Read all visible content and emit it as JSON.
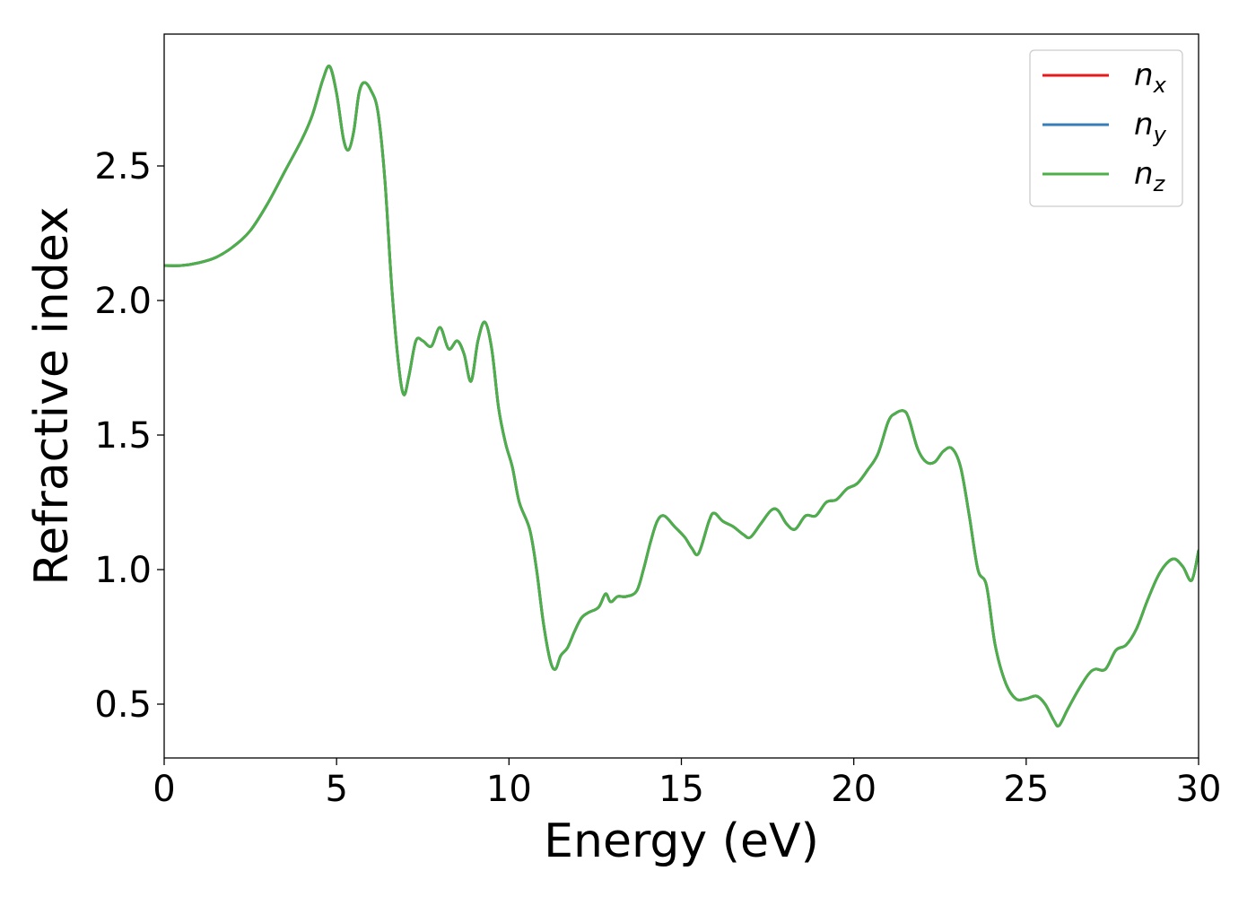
{
  "chart_data": {
    "type": "line",
    "title": "",
    "xlabel": "Energy (eV)",
    "ylabel": "Refractive index",
    "xlim": [
      0,
      30
    ],
    "ylim": [
      0.3,
      2.99
    ],
    "xticks": [
      0,
      5,
      10,
      15,
      20,
      25,
      30
    ],
    "xtick_labels": [
      "0",
      "5",
      "10",
      "15",
      "20",
      "25",
      "30"
    ],
    "yticks": [
      0.5,
      1.0,
      1.5,
      2.0,
      2.5
    ],
    "ytick_labels": [
      "0.5",
      "1.0",
      "1.5",
      "2.0",
      "2.5"
    ],
    "grid": false,
    "legend_position": "top-right",
    "series": [
      {
        "name": "n_x",
        "label_base": "n",
        "label_sub": "x",
        "color": "#e41a1c",
        "x": [
          0,
          0.5,
          1.0,
          1.5,
          2.0,
          2.5,
          3.0,
          3.5,
          4.0,
          4.3,
          4.6,
          4.8,
          5.0,
          5.2,
          5.35,
          5.5,
          5.65,
          5.8,
          6.0,
          6.2,
          6.4,
          6.6,
          6.8,
          6.95,
          7.1,
          7.3,
          7.5,
          7.75,
          8.0,
          8.25,
          8.5,
          8.7,
          8.9,
          9.1,
          9.3,
          9.5,
          9.7,
          9.9,
          10.1,
          10.3,
          10.6,
          10.8,
          11.0,
          11.2,
          11.35,
          11.5,
          11.7,
          11.9,
          12.1,
          12.3,
          12.6,
          12.8,
          12.95,
          13.15,
          13.4,
          13.7,
          13.9,
          14.1,
          14.3,
          14.5,
          14.8,
          15.1,
          15.3,
          15.5,
          15.8,
          15.95,
          16.2,
          16.5,
          16.8,
          17.0,
          17.3,
          17.6,
          17.8,
          18.05,
          18.3,
          18.6,
          18.9,
          19.2,
          19.5,
          19.8,
          20.1,
          20.4,
          20.7,
          21.0,
          21.2,
          21.45,
          21.6,
          21.85,
          22.1,
          22.35,
          22.6,
          22.85,
          23.1,
          23.35,
          23.6,
          23.85,
          24.1,
          24.4,
          24.7,
          25.0,
          25.3,
          25.55,
          25.8,
          25.95,
          26.2,
          26.5,
          26.8,
          27.0,
          27.3,
          27.6,
          27.9,
          28.2,
          28.5,
          28.8,
          29.05,
          29.3,
          29.55,
          29.8,
          30.0
        ],
        "y": [
          2.13,
          2.13,
          2.14,
          2.16,
          2.2,
          2.26,
          2.36,
          2.48,
          2.6,
          2.69,
          2.82,
          2.87,
          2.77,
          2.6,
          2.56,
          2.63,
          2.77,
          2.81,
          2.78,
          2.7,
          2.45,
          2.05,
          1.76,
          1.65,
          1.72,
          1.85,
          1.85,
          1.83,
          1.9,
          1.82,
          1.85,
          1.8,
          1.7,
          1.85,
          1.92,
          1.82,
          1.6,
          1.47,
          1.38,
          1.25,
          1.15,
          1.0,
          0.8,
          0.66,
          0.63,
          0.68,
          0.71,
          0.77,
          0.82,
          0.84,
          0.86,
          0.91,
          0.88,
          0.9,
          0.9,
          0.92,
          1.0,
          1.1,
          1.18,
          1.2,
          1.16,
          1.12,
          1.08,
          1.06,
          1.18,
          1.21,
          1.18,
          1.16,
          1.13,
          1.12,
          1.17,
          1.22,
          1.22,
          1.17,
          1.15,
          1.2,
          1.2,
          1.25,
          1.26,
          1.3,
          1.32,
          1.37,
          1.43,
          1.55,
          1.58,
          1.59,
          1.56,
          1.45,
          1.4,
          1.4,
          1.44,
          1.45,
          1.38,
          1.2,
          1.0,
          0.94,
          0.72,
          0.58,
          0.52,
          0.52,
          0.53,
          0.5,
          0.44,
          0.42,
          0.48,
          0.55,
          0.61,
          0.63,
          0.63,
          0.7,
          0.72,
          0.78,
          0.88,
          0.97,
          1.02,
          1.04,
          1.01,
          0.96,
          1.07
        ]
      },
      {
        "name": "n_y",
        "label_base": "n",
        "label_sub": "y",
        "color": "#377eb8",
        "x": [
          0,
          0.5,
          1.0,
          1.5,
          2.0,
          2.5,
          3.0,
          3.5,
          4.0,
          4.3,
          4.6,
          4.8,
          5.0,
          5.2,
          5.35,
          5.5,
          5.65,
          5.8,
          6.0,
          6.2,
          6.4,
          6.6,
          6.8,
          6.95,
          7.1,
          7.3,
          7.5,
          7.75,
          8.0,
          8.25,
          8.5,
          8.7,
          8.9,
          9.1,
          9.3,
          9.5,
          9.7,
          9.9,
          10.1,
          10.3,
          10.6,
          10.8,
          11.0,
          11.2,
          11.35,
          11.5,
          11.7,
          11.9,
          12.1,
          12.3,
          12.6,
          12.8,
          12.95,
          13.15,
          13.4,
          13.7,
          13.9,
          14.1,
          14.3,
          14.5,
          14.8,
          15.1,
          15.3,
          15.5,
          15.8,
          15.95,
          16.2,
          16.5,
          16.8,
          17.0,
          17.3,
          17.6,
          17.8,
          18.05,
          18.3,
          18.6,
          18.9,
          19.2,
          19.5,
          19.8,
          20.1,
          20.4,
          20.7,
          21.0,
          21.2,
          21.45,
          21.6,
          21.85,
          22.1,
          22.35,
          22.6,
          22.85,
          23.1,
          23.35,
          23.6,
          23.85,
          24.1,
          24.4,
          24.7,
          25.0,
          25.3,
          25.55,
          25.8,
          25.95,
          26.2,
          26.5,
          26.8,
          27.0,
          27.3,
          27.6,
          27.9,
          28.2,
          28.5,
          28.8,
          29.05,
          29.3,
          29.55,
          29.8,
          30.0
        ],
        "y": [
          2.13,
          2.13,
          2.14,
          2.16,
          2.2,
          2.26,
          2.36,
          2.48,
          2.6,
          2.69,
          2.82,
          2.87,
          2.77,
          2.6,
          2.56,
          2.63,
          2.77,
          2.81,
          2.78,
          2.7,
          2.45,
          2.05,
          1.76,
          1.65,
          1.72,
          1.85,
          1.85,
          1.83,
          1.9,
          1.82,
          1.85,
          1.8,
          1.7,
          1.85,
          1.92,
          1.82,
          1.6,
          1.47,
          1.38,
          1.25,
          1.15,
          1.0,
          0.8,
          0.66,
          0.63,
          0.68,
          0.71,
          0.77,
          0.82,
          0.84,
          0.86,
          0.91,
          0.88,
          0.9,
          0.9,
          0.92,
          1.0,
          1.1,
          1.18,
          1.2,
          1.16,
          1.12,
          1.08,
          1.06,
          1.18,
          1.21,
          1.18,
          1.16,
          1.13,
          1.12,
          1.17,
          1.22,
          1.22,
          1.17,
          1.15,
          1.2,
          1.2,
          1.25,
          1.26,
          1.3,
          1.32,
          1.37,
          1.43,
          1.55,
          1.58,
          1.59,
          1.56,
          1.45,
          1.4,
          1.4,
          1.44,
          1.45,
          1.38,
          1.2,
          1.0,
          0.94,
          0.72,
          0.58,
          0.52,
          0.52,
          0.53,
          0.5,
          0.44,
          0.42,
          0.48,
          0.55,
          0.61,
          0.63,
          0.63,
          0.7,
          0.72,
          0.78,
          0.88,
          0.97,
          1.02,
          1.04,
          1.01,
          0.96,
          1.07
        ]
      },
      {
        "name": "n_z",
        "label_base": "n",
        "label_sub": "z",
        "color": "#4daf4a",
        "x": [
          0,
          0.5,
          1.0,
          1.5,
          2.0,
          2.5,
          3.0,
          3.5,
          4.0,
          4.3,
          4.6,
          4.8,
          5.0,
          5.2,
          5.35,
          5.5,
          5.65,
          5.8,
          6.0,
          6.2,
          6.4,
          6.6,
          6.8,
          6.95,
          7.1,
          7.3,
          7.5,
          7.75,
          8.0,
          8.25,
          8.5,
          8.7,
          8.9,
          9.1,
          9.3,
          9.5,
          9.7,
          9.9,
          10.1,
          10.3,
          10.6,
          10.8,
          11.0,
          11.2,
          11.35,
          11.5,
          11.7,
          11.9,
          12.1,
          12.3,
          12.6,
          12.8,
          12.95,
          13.15,
          13.4,
          13.7,
          13.9,
          14.1,
          14.3,
          14.5,
          14.8,
          15.1,
          15.3,
          15.5,
          15.8,
          15.95,
          16.2,
          16.5,
          16.8,
          17.0,
          17.3,
          17.6,
          17.8,
          18.05,
          18.3,
          18.6,
          18.9,
          19.2,
          19.5,
          19.8,
          20.1,
          20.4,
          20.7,
          21.0,
          21.2,
          21.45,
          21.6,
          21.85,
          22.1,
          22.35,
          22.6,
          22.85,
          23.1,
          23.35,
          23.6,
          23.85,
          24.1,
          24.4,
          24.7,
          25.0,
          25.3,
          25.55,
          25.8,
          25.95,
          26.2,
          26.5,
          26.8,
          27.0,
          27.3,
          27.6,
          27.9,
          28.2,
          28.5,
          28.8,
          29.05,
          29.3,
          29.55,
          29.8,
          30.0
        ],
        "y": [
          2.13,
          2.13,
          2.14,
          2.16,
          2.2,
          2.26,
          2.36,
          2.48,
          2.6,
          2.69,
          2.82,
          2.87,
          2.77,
          2.6,
          2.56,
          2.63,
          2.77,
          2.81,
          2.78,
          2.7,
          2.45,
          2.05,
          1.76,
          1.65,
          1.72,
          1.85,
          1.85,
          1.83,
          1.9,
          1.82,
          1.85,
          1.8,
          1.7,
          1.85,
          1.92,
          1.82,
          1.6,
          1.47,
          1.38,
          1.25,
          1.15,
          1.0,
          0.8,
          0.66,
          0.63,
          0.68,
          0.71,
          0.77,
          0.82,
          0.84,
          0.86,
          0.91,
          0.88,
          0.9,
          0.9,
          0.92,
          1.0,
          1.1,
          1.18,
          1.2,
          1.16,
          1.12,
          1.08,
          1.06,
          1.18,
          1.21,
          1.18,
          1.16,
          1.13,
          1.12,
          1.17,
          1.22,
          1.22,
          1.17,
          1.15,
          1.2,
          1.2,
          1.25,
          1.26,
          1.3,
          1.32,
          1.37,
          1.43,
          1.55,
          1.58,
          1.59,
          1.56,
          1.45,
          1.4,
          1.4,
          1.44,
          1.45,
          1.38,
          1.2,
          1.0,
          0.94,
          0.72,
          0.58,
          0.52,
          0.52,
          0.53,
          0.5,
          0.44,
          0.42,
          0.48,
          0.55,
          0.61,
          0.63,
          0.63,
          0.7,
          0.72,
          0.78,
          0.88,
          0.97,
          1.02,
          1.04,
          1.01,
          0.96,
          1.07
        ]
      }
    ]
  }
}
